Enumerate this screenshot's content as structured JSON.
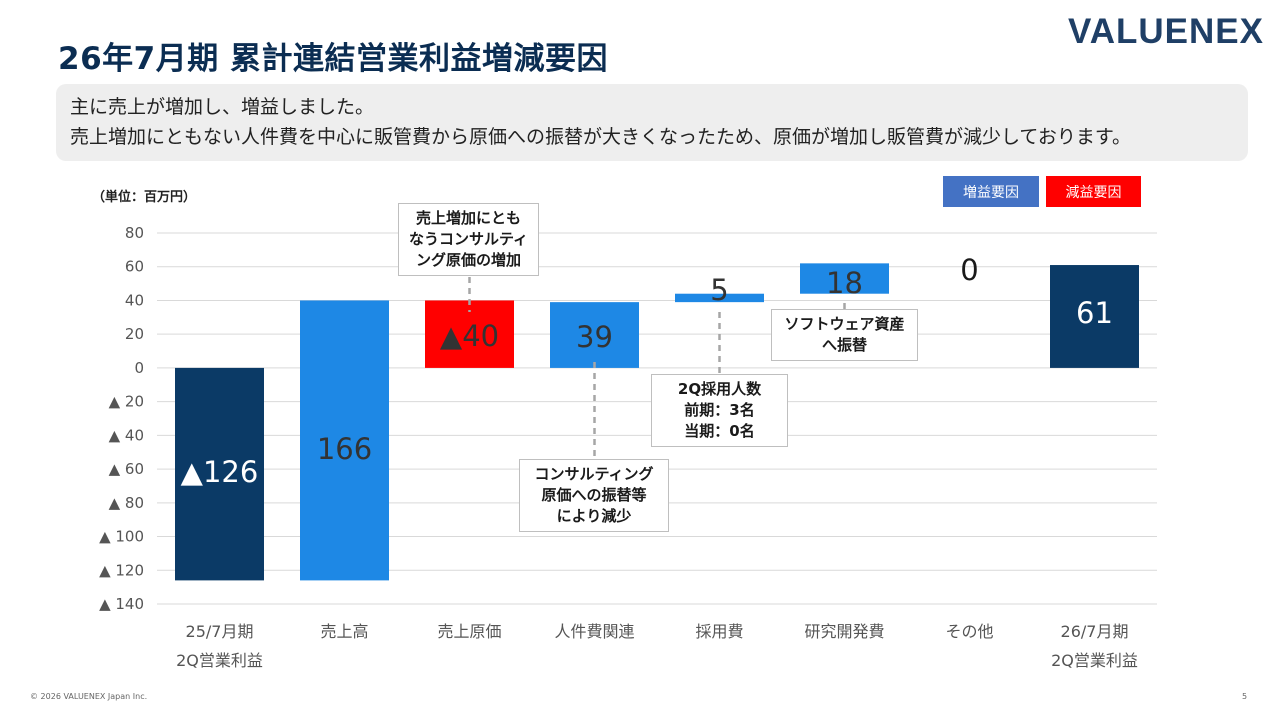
{
  "title": "26年7月期 累計連結営業利益増減要因",
  "logo": "VALUENEX",
  "summary": {
    "line1": "主に売上が増加し、増益しました。",
    "line2": "売上増加にともない人件費を中心に販管費から原価への振替が大きくなったため、原価が増加し販管費が減少しております。"
  },
  "unit": "（単位：百万円）",
  "legend": {
    "increase": "増益要因",
    "decrease": "減益要因"
  },
  "chart_data": {
    "type": "bar",
    "subtype": "waterfall",
    "categories": [
      "25/7月期\n2Q営業利益",
      "売上高",
      "売上原価",
      "人件費関連",
      "採用費",
      "研究開発費",
      "その他",
      "26/7月期\n2Q営業利益"
    ],
    "bars": [
      {
        "start": 0,
        "end": -126,
        "kind": "total",
        "label": "▲126",
        "color": "#0b3a66"
      },
      {
        "start": -126,
        "end": 40,
        "kind": "increase",
        "label": "166",
        "color": "#1e88e5"
      },
      {
        "start": 40,
        "end": 0,
        "kind": "decrease",
        "label": "▲40",
        "color": "#ff0000"
      },
      {
        "start": 0,
        "end": 39,
        "kind": "increase",
        "label": "39",
        "color": "#1e88e5"
      },
      {
        "start": 39,
        "end": 44,
        "kind": "increase",
        "label": "5",
        "color": "#1e88e5"
      },
      {
        "start": 44,
        "end": 62,
        "kind": "increase",
        "label": "18",
        "color": "#1e88e5"
      },
      {
        "start": 62,
        "end": 62,
        "kind": "increase",
        "label": "0",
        "color": "#1e88e5"
      },
      {
        "start": 0,
        "end": 61,
        "kind": "total",
        "label": "61",
        "color": "#0b3a66"
      }
    ],
    "ylim": [
      -140,
      80
    ],
    "yticks": [
      80,
      60,
      40,
      20,
      0,
      -20,
      -40,
      -60,
      -80,
      -100,
      -120,
      -140
    ],
    "ytick_labels": [
      "80",
      "60",
      "40",
      "20",
      "0",
      "▲ 20",
      "▲ 40",
      "▲ 60",
      "▲ 80",
      "▲ 100",
      "▲ 120",
      "▲ 140"
    ],
    "grid": true,
    "legend_position": "top-right"
  },
  "callouts": {
    "cost_of_sales": "売上増加にとも\nなうコンサルティ\nング原価の増加",
    "personnel": "コンサルティング\n原価への振替等\nにより減少",
    "recruiting": "2Q採用人数\n前期：3名\n当期：0名",
    "rnd": "ソフトウェア資産\nへ振替"
  },
  "footer": "© 2026 VALUENEX Japan Inc.",
  "page_number": "5"
}
